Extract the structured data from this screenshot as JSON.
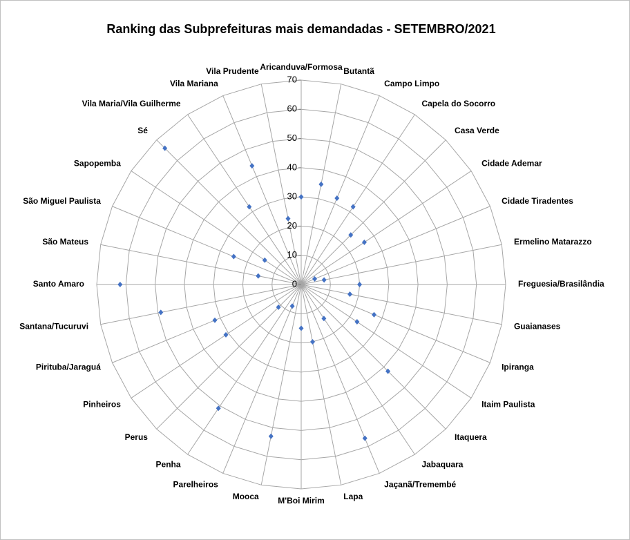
{
  "chart_data": {
    "type": "radar",
    "title": "Ranking das Subprefeituras mais demandadas - SETEMBRO/2021",
    "categories": [
      "Aricanduva/Formosa",
      "Butantã",
      "Campo Limpo",
      "Capela do Socorro",
      "Casa Verde",
      "Cidade Ademar",
      "Cidade Tiradentes",
      "Ermelino Matarazzo",
      "Freguesia/Brasilândia",
      "Guaianases",
      "Ipiranga",
      "Itaim Paulista",
      "Itaquera",
      "Jabaquara",
      "Jaçanã/Tremembé",
      "Lapa",
      "M'Boi Mirim",
      "Mooca",
      "Parelheiros",
      "Penha",
      "Perus",
      "Pinheiros",
      "Pirituba/Jaraguá",
      "Santana/Tucuruvi",
      "Santo Amaro",
      "São Mateus",
      "São Miguel Paulista",
      "Sapopemba",
      "Sé",
      "Vila Maria/Vila Guilherme",
      "Vila Mariana",
      "Vila Prudente"
    ],
    "values": [
      30,
      35,
      32,
      32,
      24,
      26,
      5,
      8,
      20,
      17,
      27,
      23,
      42,
      14,
      57,
      20,
      15,
      53,
      8,
      51,
      11,
      31,
      32,
      49,
      62,
      15,
      25,
      15,
      66,
      32,
      44,
      23
    ],
    "color": "#4472c4",
    "ylim": [
      0,
      70
    ],
    "yticks": [
      0,
      10,
      20,
      30,
      40,
      50,
      60,
      70
    ],
    "grid": true
  }
}
